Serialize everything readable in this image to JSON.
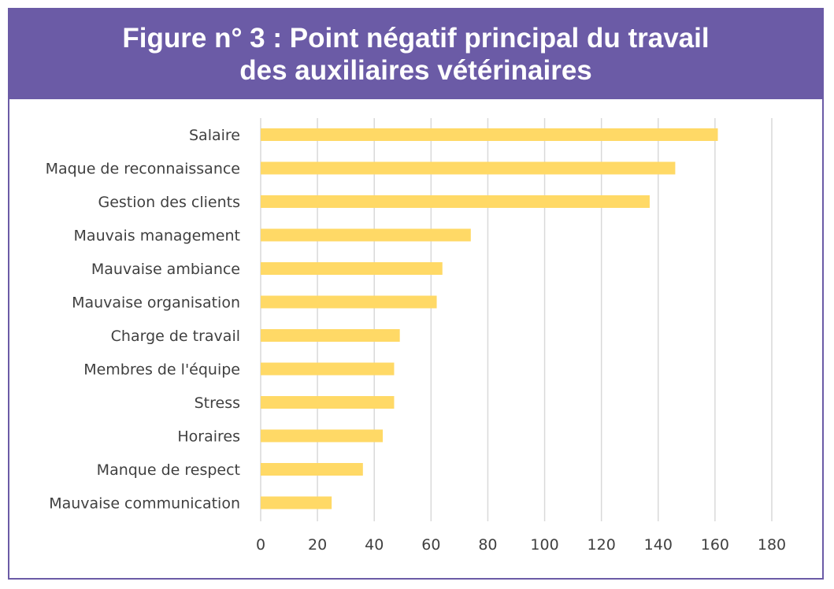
{
  "title_line1": "Figure n° 3 : Point négatif principal du travail",
  "title_line2": "des auxiliaires vétérinaires",
  "colors": {
    "header": "#6b5ba6",
    "bar": "#ffd966",
    "grid": "#d9d9d9"
  },
  "chart_data": {
    "type": "bar",
    "orientation": "horizontal",
    "categories": [
      "Salaire",
      "Maque de reconnaissance",
      "Gestion des clients",
      "Mauvais management",
      "Mauvaise ambiance",
      "Mauvaise organisation",
      "Charge de travail",
      "Membres de l'équipe",
      "Stress",
      "Horaires",
      "Manque de respect",
      "Mauvaise communication"
    ],
    "values": [
      161,
      146,
      137,
      74,
      64,
      62,
      49,
      47,
      47,
      43,
      36,
      25
    ],
    "xlim": [
      0,
      180
    ],
    "ticks": [
      "0",
      "20",
      "40",
      "60",
      "80",
      "100",
      "120",
      "140",
      "160",
      "180"
    ],
    "grid": true,
    "legend": false
  }
}
